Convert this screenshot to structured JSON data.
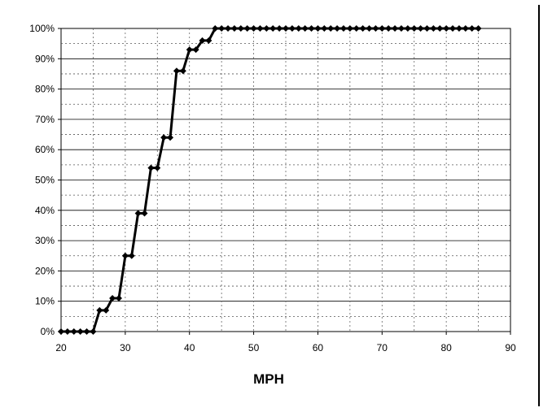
{
  "chart_data": {
    "type": "line",
    "title": "",
    "xlabel": "MPH",
    "ylabel": "",
    "xlim": [
      20,
      90
    ],
    "ylim": [
      0,
      100
    ],
    "x_ticks": [
      "20",
      "30",
      "40",
      "50",
      "60",
      "70",
      "80",
      "90"
    ],
    "y_ticks": [
      "0%",
      "10%",
      "20%",
      "30%",
      "40%",
      "50%",
      "60%",
      "70%",
      "80%",
      "90%",
      "100%"
    ],
    "grid": true,
    "legend": "none",
    "series": [
      {
        "color": "#000000",
        "marker": "diamond",
        "x": [
          20,
          21,
          22,
          23,
          24,
          25,
          26,
          27,
          28,
          29,
          30,
          31,
          32,
          33,
          34,
          35,
          36,
          37,
          38,
          39,
          40,
          41,
          42,
          43,
          44,
          45,
          46,
          47,
          48,
          49,
          50,
          51,
          52,
          53,
          54,
          55,
          56,
          57,
          58,
          59,
          60,
          61,
          62,
          63,
          64,
          65,
          66,
          67,
          68,
          69,
          70,
          71,
          72,
          73,
          74,
          75,
          76,
          77,
          78,
          79,
          80,
          81,
          82,
          83,
          84,
          85
        ],
        "y": [
          0,
          0,
          0,
          0,
          0,
          0,
          7,
          7,
          11,
          11,
          25,
          25,
          39,
          39,
          54,
          54,
          64,
          64,
          86,
          86,
          93,
          93,
          96,
          96,
          100,
          100,
          100,
          100,
          100,
          100,
          100,
          100,
          100,
          100,
          100,
          100,
          100,
          100,
          100,
          100,
          100,
          100,
          100,
          100,
          100,
          100,
          100,
          100,
          100,
          100,
          100,
          100,
          100,
          100,
          100,
          100,
          100,
          100,
          100,
          100,
          100,
          100,
          100,
          100,
          100,
          100
        ]
      }
    ]
  }
}
